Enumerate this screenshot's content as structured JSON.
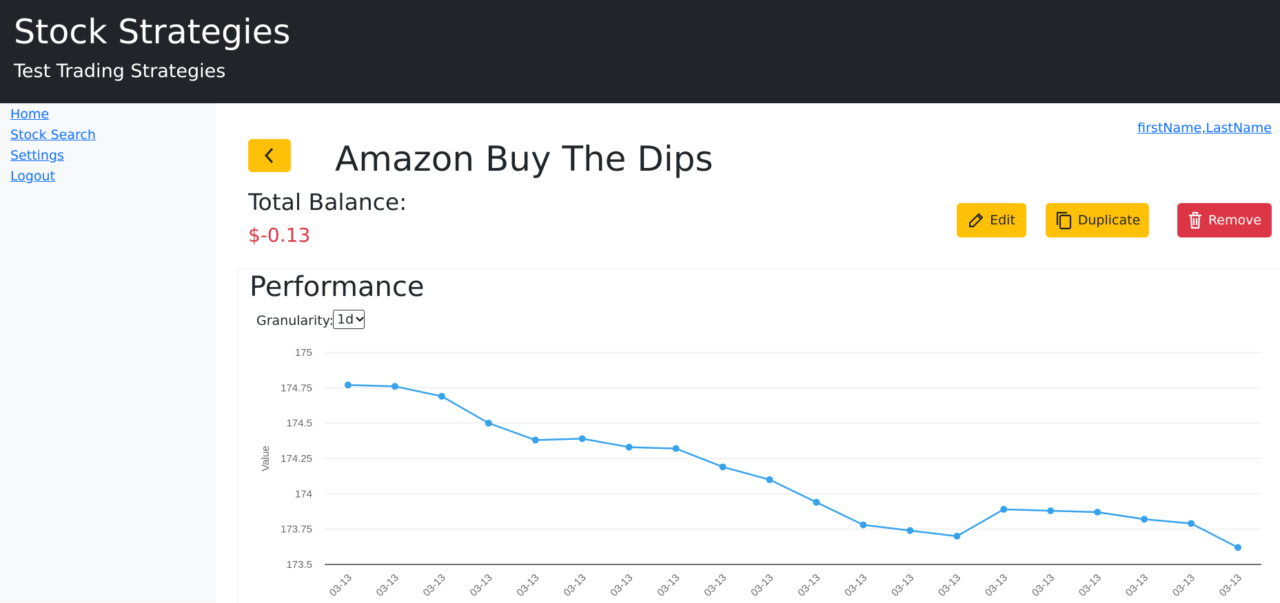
{
  "header": {
    "title": "Stock Strategies",
    "subtitle": "Test Trading Strategies"
  },
  "nav": [
    "Home",
    "Stock Search",
    "Settings",
    "Logout"
  ],
  "user": "firstName,LastName",
  "strategy": {
    "title": "Amazon Buy The Dips",
    "balance_label": "Total Balance:",
    "balance": "$-0.13"
  },
  "buttons": [
    "Edit",
    "Duplicate",
    "Remove"
  ],
  "performance": {
    "title": "Performance",
    "granularity_label": "Granularity:",
    "granularity": "1d"
  },
  "chart_data": {
    "type": "line",
    "y_label": "Value",
    "color": "#36a2eb",
    "grid": true,
    "categories": [
      "03-13",
      "03-13",
      "03-13",
      "03-13",
      "03-13",
      "03-13",
      "03-13",
      "03-13",
      "03-13",
      "03-13",
      "03-13",
      "03-13",
      "03-13",
      "03-13",
      "03-13",
      "03-13",
      "03-13",
      "03-13",
      "03-13",
      "03-13"
    ],
    "values": [
      174.77,
      174.76,
      174.69,
      174.5,
      174.38,
      174.39,
      174.33,
      174.32,
      174.19,
      174.1,
      173.94,
      173.78,
      173.74,
      173.7,
      173.89,
      173.88,
      173.87,
      173.82,
      173.79,
      173.62
    ],
    "ylim": [
      173.5,
      175
    ],
    "yticks": [
      175,
      174.75,
      174.5,
      174.25,
      174,
      173.75,
      173.5
    ]
  }
}
